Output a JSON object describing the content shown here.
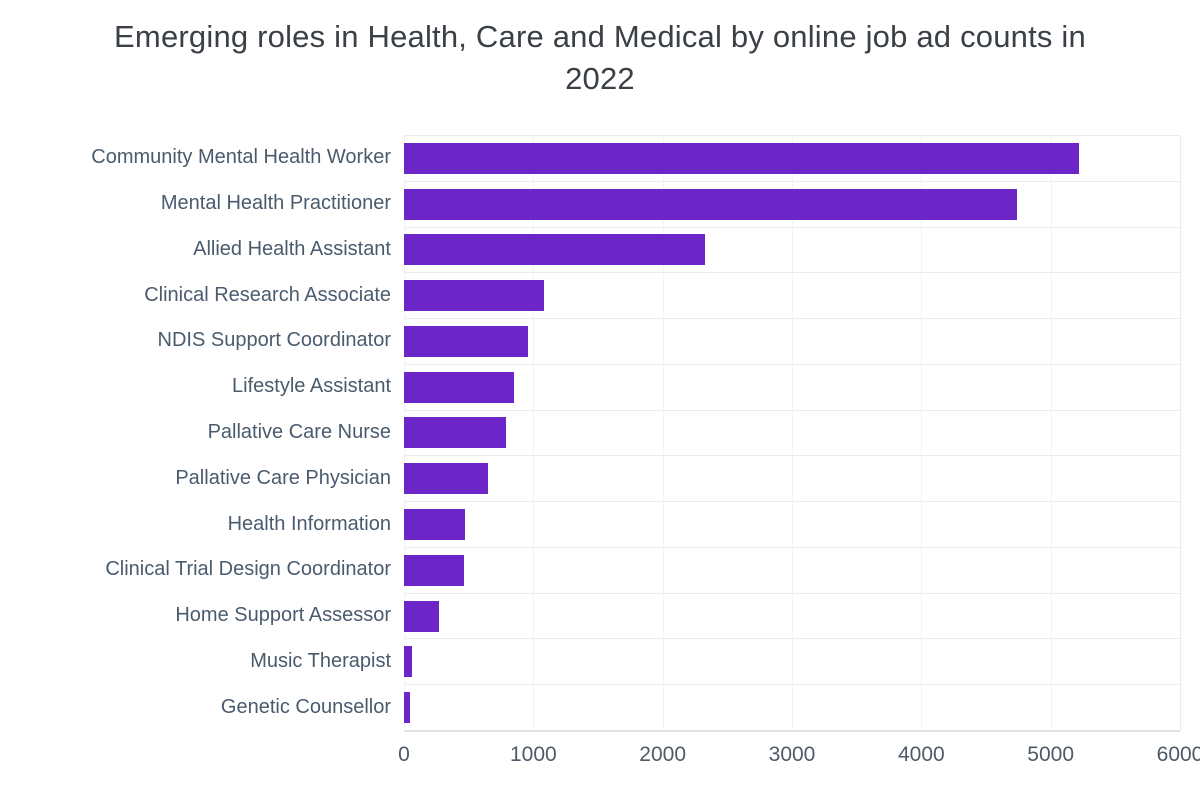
{
  "chart_data": {
    "type": "bar",
    "orientation": "horizontal",
    "title": "Emerging roles in Health, Care and Medical by online job ad counts in 2022",
    "categories": [
      "Community Mental Health Worker",
      "Mental Health Practitioner",
      "Allied Health Assistant",
      "Clinical Research Associate",
      "NDIS Support Coordinator",
      "Lifestyle Assistant",
      "Pallative Care Nurse",
      "Pallative Care Physician",
      "Health Information",
      "Clinical Trial Design Coordinator",
      "Home Support Assessor",
      "Music Therapist",
      "Genetic Counsellor"
    ],
    "values": [
      5220,
      4740,
      2330,
      1080,
      960,
      850,
      790,
      650,
      470,
      465,
      270,
      65,
      50
    ],
    "xlabel": "",
    "ylabel": "",
    "xlim": [
      0,
      6000
    ],
    "xticks": [
      {
        "value": 0,
        "label": "0"
      },
      {
        "value": 1000,
        "label": "1000"
      },
      {
        "value": 2000,
        "label": "2000"
      },
      {
        "value": 3000,
        "label": "3000"
      },
      {
        "value": 4000,
        "label": "4000"
      },
      {
        "value": 5000,
        "label": "5000"
      },
      {
        "value": 6000,
        "label": "6000"
      }
    ],
    "grid": "row-separators-and-faint-vertical",
    "legend": "none",
    "colors": {
      "bar": "#6c26c8",
      "title_text": "#3a4046",
      "axis_text": "#4a5b6e",
      "tick_text": "#4e5a68",
      "gridline": "#e9edf1",
      "axis_line": "#dfe3e8",
      "background": "#ffffff"
    }
  }
}
